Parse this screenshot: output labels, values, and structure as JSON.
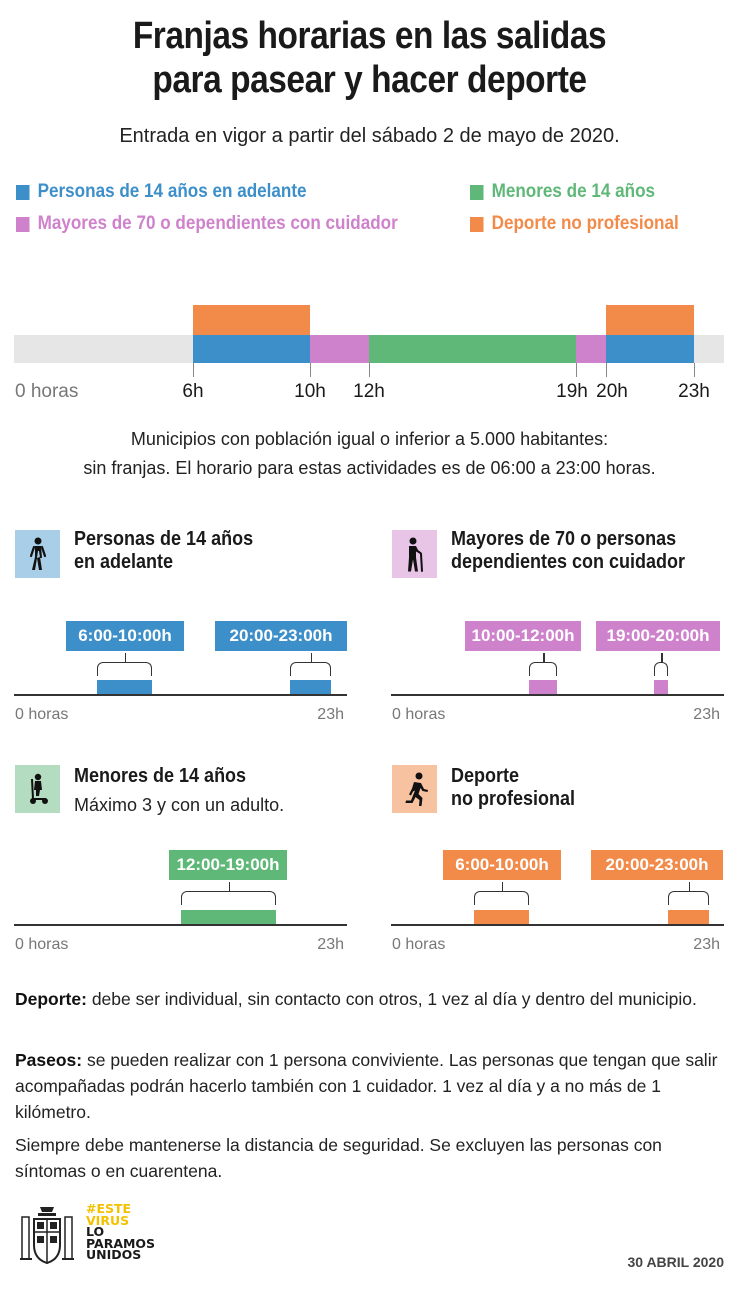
{
  "title_line1": "Franjas horarias en las salidas",
  "title_line2": "para pasear y hacer deporte",
  "subtitle": "Entrada en vigor a partir del sábado 2 de mayo de 2020.",
  "legend": {
    "adults": "Personas de 14 años en adelante",
    "minors": "Menores de 14 años",
    "elderly": "Mayores de 70 o dependientes con cuidador",
    "sport": "Deporte no profesional"
  },
  "colors": {
    "blue": "#3d8fc9",
    "pink": "#cf82cc",
    "green": "#5fb877",
    "orange": "#f28b4a",
    "gray": "#e6e6e6"
  },
  "timeline": {
    "start_label": "0 horas",
    "hours": [
      "6h",
      "10h",
      "12h",
      "19h",
      "20h",
      "23h"
    ],
    "segments": [
      {
        "group": "adults",
        "from": 6,
        "to": 10
      },
      {
        "group": "sport",
        "from": 6,
        "to": 10
      },
      {
        "group": "elderly",
        "from": 10,
        "to": 12
      },
      {
        "group": "minors",
        "from": 12,
        "to": 19
      },
      {
        "group": "elderly",
        "from": 19,
        "to": 20
      },
      {
        "group": "adults",
        "from": 20,
        "to": 23
      },
      {
        "group": "sport",
        "from": 20,
        "to": 23
      }
    ]
  },
  "note_line1": "Municipios con población igual o inferior a 5.000 habitantes:",
  "note_line2": "sin franjas. El horario para estas actividades es de 06:00 a 23:00 horas.",
  "panels": {
    "adults": {
      "title1": "Personas de 14 años",
      "title2": "en adelante",
      "slot1": "6:00-10:00h",
      "slot2": "20:00-23:00h",
      "axis_start": "0 horas",
      "axis_end": "23h",
      "icon": "walking-person-icon"
    },
    "elderly": {
      "title1": "Mayores de 70 o personas",
      "title2": "dependientes con cuidador",
      "slot1": "10:00-12:00h",
      "slot2": "19:00-20:00h",
      "axis_start": "0 horas",
      "axis_end": "23h",
      "icon": "elderly-cane-icon"
    },
    "minors": {
      "title1": "Menores de 14 años",
      "subtitle": "Máximo 3 y con un adulto.",
      "slot1": "12:00-19:00h",
      "axis_start": "0 horas",
      "axis_end": "23h",
      "icon": "child-scooter-icon"
    },
    "sport": {
      "title1": "Deporte",
      "title2": "no profesional",
      "slot1": "6:00-10:00h",
      "slot2": "20:00-23:00h",
      "axis_start": "0 horas",
      "axis_end": "23h",
      "icon": "running-person-icon"
    }
  },
  "paragraphs": {
    "sport_label": "Deporte:",
    "sport_text": " debe ser individual, sin contacto con otros, 1 vez al día y dentro del municipio.",
    "walks_label": "Paseos:",
    "walks_text": " se pueden realizar con 1 persona conviviente. Las personas que tengan que salir acompañadas podrán hacerlo también con 1 cuidador. 1 vez al día y a no más de 1 kilómetro.",
    "safety_text": "Siempre debe mantenerse la distancia de seguridad. Se excluyen las personas con síntomas o en cuarentena."
  },
  "footer": {
    "slogan_l1": "#ESTE",
    "slogan_l2": "VIRUS",
    "slogan_l3": "LO",
    "slogan_l4": "PARAMOS",
    "slogan_l5": "UNIDOS",
    "date": "30 ABRIL 2020",
    "logo": "spain-coat-of-arms-icon"
  }
}
